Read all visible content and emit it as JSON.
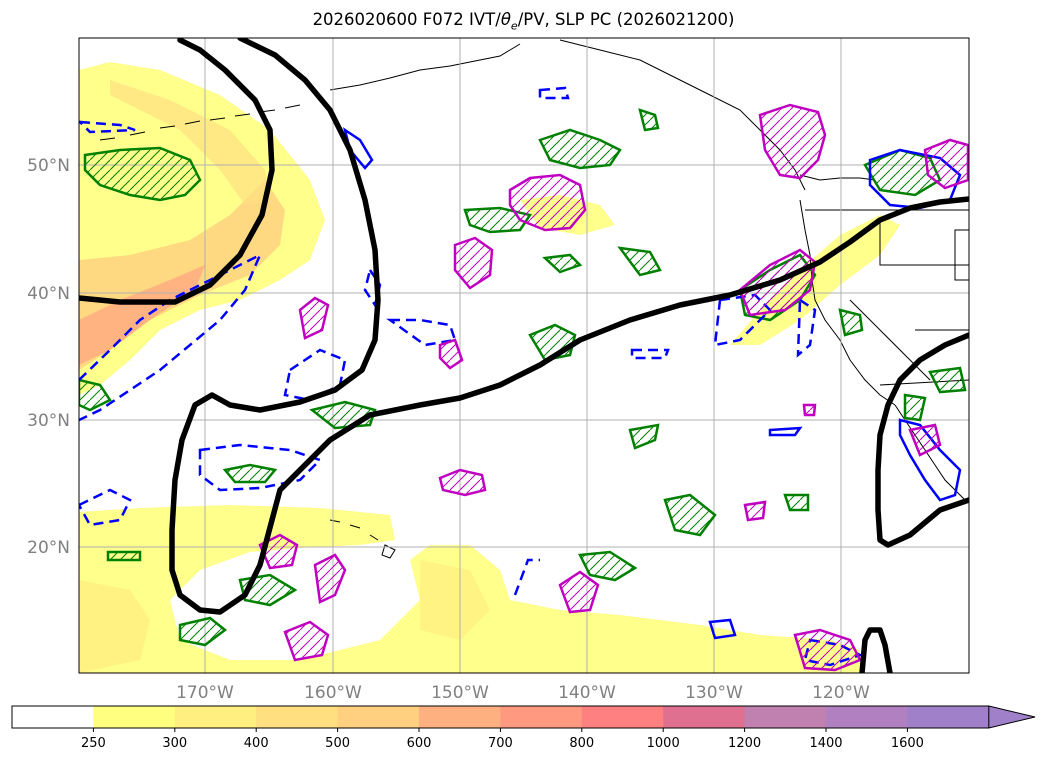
{
  "title": "2026020600 F072 IVT/θe/PV, SLP PC (2026021200)",
  "title_parts": {
    "pre": "2026020600 F072 IVT/",
    "theta": "θ",
    "sub": "e",
    "post": "/PV, SLP PC (2026021200)"
  },
  "lat_labels": [
    "50°N",
    "40°N",
    "30°N",
    "20°N"
  ],
  "lon_labels": [
    "170°W",
    "160°W",
    "150°W",
    "140°W",
    "130°W",
    "120°W"
  ],
  "colorbar": {
    "ticks": [
      "250",
      "300",
      "400",
      "500",
      "600",
      "700",
      "800",
      "1000",
      "1200",
      "1400",
      "1600"
    ],
    "colors": [
      "#ffffff",
      "#ffff80",
      "#ffee80",
      "#ffdf80",
      "#ffd080",
      "#ffb080",
      "#ff9a80",
      "#ff8080",
      "#e07090",
      "#c080b0",
      "#b080c0",
      "#a080c8"
    ]
  },
  "legend_colors": {
    "slp_contour": "#000000",
    "pv_positive": "#008000",
    "pv_negative": "#0000ff",
    "theta_e": "#c000c0",
    "grid": "#b0b0b0",
    "coast": "#000000"
  }
}
